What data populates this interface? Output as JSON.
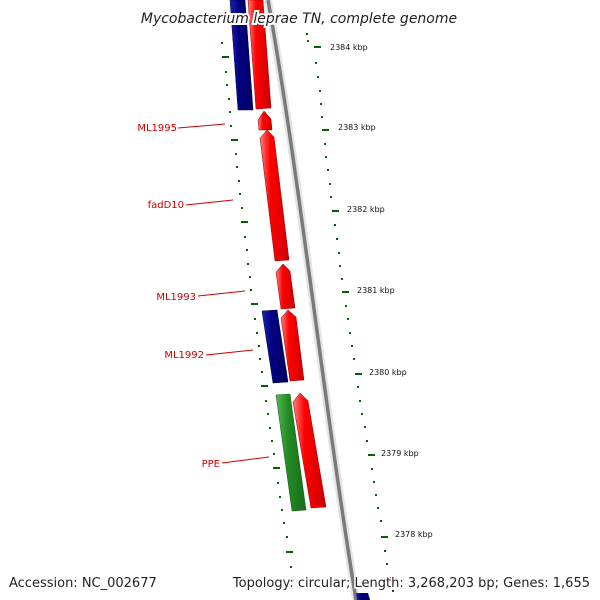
{
  "title": "Mycobacterium leprae TN, complete genome",
  "accession_text": "Accession: NC_002677",
  "summary_text": "Topology: circular; Length: 3,268,203 bp; Genes: 1,655",
  "colors": {
    "forward_cds": "#ff0000",
    "reverse_cds": "#000080",
    "ppe_family": "#228b22",
    "backbone": "#808080",
    "tick": "#006400",
    "label": "#cc0000"
  },
  "ruler_labels": [
    {
      "text": "2384 kbp"
    },
    {
      "text": "2383 kbp"
    },
    {
      "text": "2382 kbp"
    },
    {
      "text": "2381 kbp"
    },
    {
      "text": "2380 kbp"
    },
    {
      "text": "2379 kbp"
    },
    {
      "text": "2378 kbp"
    }
  ],
  "gene_labels": [
    {
      "text": "ML1995"
    },
    {
      "text": "fadD10"
    },
    {
      "text": "ML1993"
    },
    {
      "text": "ML1992"
    },
    {
      "text": "PPE"
    }
  ]
}
